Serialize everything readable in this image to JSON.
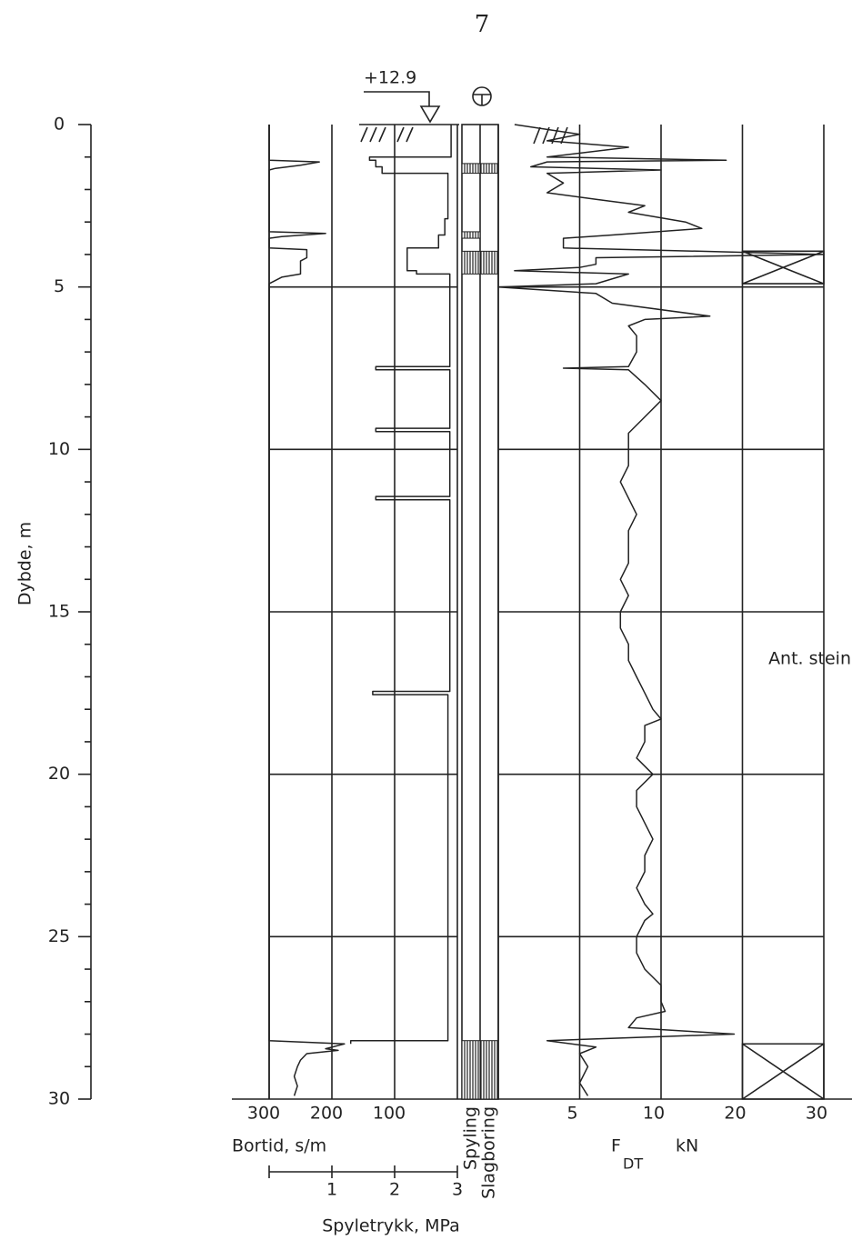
{
  "page_number": "7",
  "elevation_label": "+12.9",
  "chart_data": {
    "type": "log",
    "ylabel": "Dybde, m",
    "ylim": [
      0,
      30
    ],
    "yticks": [
      0,
      5,
      10,
      15,
      20,
      25,
      30
    ],
    "yminorticks": [
      1,
      2,
      3,
      4,
      6,
      7,
      8,
      9,
      11,
      12,
      13,
      14,
      16,
      17,
      18,
      19,
      21,
      22,
      23,
      24,
      26,
      27,
      28,
      29
    ],
    "bortid": {
      "type": "line",
      "xlabel": "Bortid, s/m",
      "xlim": [
        300,
        0
      ],
      "xticks": [
        300,
        200,
        100
      ],
      "series": [
        {
          "color": "#222",
          "depth": [
            0,
            1.0,
            1.0,
            1.1,
            1.1,
            1.3,
            1.3,
            1.5,
            1.5,
            2.9,
            2.9,
            3.4,
            3.4,
            3.8,
            3.8,
            4.5,
            4.5,
            4.6,
            4.6,
            7.45,
            7.45,
            7.55,
            7.55,
            9.35,
            9.35,
            9.45,
            9.45,
            11.45,
            11.45,
            11.55,
            11.55,
            17.45,
            17.45,
            17.55,
            17.55,
            28.2,
            28.2,
            28.3
          ],
          "values": [
            10,
            10,
            140,
            140,
            130,
            130,
            120,
            120,
            15,
            15,
            20,
            20,
            30,
            30,
            80,
            80,
            65,
            65,
            12,
            12,
            130,
            130,
            12,
            12,
            130,
            130,
            12,
            12,
            130,
            130,
            12,
            12,
            135,
            135,
            15,
            15,
            170,
            170
          ]
        }
      ]
    },
    "spyletrykk": {
      "type": "line",
      "xlabel": "Spyletrykk, MPa",
      "xlim": [
        0,
        3
      ],
      "xticks": [
        1,
        2,
        3
      ],
      "series": [
        {
          "color": "#222",
          "depth": [
            0,
            1.1,
            1.15,
            1.25,
            1.35,
            1.4,
            3.3,
            3.35,
            3.45,
            3.5,
            3.8,
            3.85,
            4.1,
            4.2,
            4.6,
            4.7,
            4.9,
            28.2,
            28.3,
            28.45,
            28.5,
            28.6,
            28.8,
            29.0,
            29.3,
            29.6,
            29.9
          ],
          "values": [
            0,
            0,
            0.8,
            0.5,
            0.1,
            0,
            0,
            0.9,
            0.2,
            0,
            0,
            0.6,
            0.6,
            0.5,
            0.5,
            0.2,
            0,
            0,
            1.2,
            0.9,
            1.1,
            0.6,
            0.5,
            0.45,
            0.4,
            0.45,
            0.4
          ]
        }
      ]
    },
    "strips": [
      {
        "label": "Spyling",
        "intervals": [
          [
            1.2,
            1.5
          ],
          [
            3.3,
            3.5
          ],
          [
            3.9,
            4.6
          ],
          [
            28.2,
            30
          ]
        ]
      },
      {
        "label": "Slagboring",
        "intervals": [
          [
            1.2,
            1.5
          ],
          [
            3.9,
            4.6
          ],
          [
            28.2,
            30
          ]
        ]
      }
    ],
    "fdt": {
      "type": "line",
      "xlabel": {
        "symbol": "F",
        "subscript": "DT",
        "unit": "kN"
      },
      "xlim": [
        0,
        30
      ],
      "xticks": [
        5,
        10,
        20,
        30
      ],
      "series": [
        {
          "color": "#222",
          "depth": [
            0,
            0.3,
            0.5,
            0.7,
            1.0,
            1.1,
            1.15,
            1.3,
            1.4,
            1.5,
            1.8,
            2.1,
            2.3,
            2.5,
            2.7,
            3.0,
            3.2,
            3.4,
            3.5,
            3.8,
            3.9,
            4.0,
            4.1,
            4.3,
            4.4,
            4.5,
            4.6,
            4.9,
            5.0,
            5.2,
            5.5,
            5.9,
            6.0,
            6.2,
            6.5,
            7.0,
            7.45,
            7.5,
            7.55,
            8.0,
            8.5,
            9.0,
            9.5,
            10,
            10.5,
            11,
            11.5,
            12,
            12.5,
            13,
            13.5,
            14,
            14.5,
            15,
            15.5,
            16,
            16.5,
            17,
            17.5,
            18,
            18.3,
            18.5,
            19,
            19.5,
            20,
            20.5,
            21,
            21.5,
            22,
            22.5,
            23,
            23.5,
            24,
            24.3,
            24.5,
            25,
            25.5,
            26,
            26.5,
            27,
            27.3,
            27.5,
            27.8,
            28.0,
            28.2,
            28.4,
            28.6,
            29,
            29.5,
            29.9
          ],
          "values": [
            1,
            5,
            3,
            8,
            3,
            18,
            3,
            2,
            10,
            3,
            4,
            3,
            6,
            9,
            8,
            13,
            15,
            7,
            4,
            4,
            15,
            30,
            6,
            6,
            5,
            1,
            8,
            6,
            0,
            6,
            7,
            16,
            9,
            8,
            8.5,
            8.5,
            8,
            4,
            8,
            9,
            10,
            9,
            8,
            8,
            8,
            7.5,
            8,
            8.5,
            8,
            8,
            8,
            7.5,
            8,
            7.5,
            7.5,
            8,
            8,
            8.5,
            9,
            9.5,
            10,
            9,
            9,
            8.5,
            9.5,
            8.5,
            8.5,
            9,
            9.5,
            9,
            9,
            8.5,
            9,
            9.5,
            9,
            8.5,
            8.5,
            9,
            10,
            10,
            10.5,
            8.5,
            8,
            19,
            3,
            6,
            5,
            5.5,
            5,
            5.5
          ]
        }
      ],
      "annotation": "Ant. stein",
      "crossed_intervals": [
        [
          3.9,
          4.9
        ],
        [
          28.3,
          30
        ]
      ]
    }
  }
}
